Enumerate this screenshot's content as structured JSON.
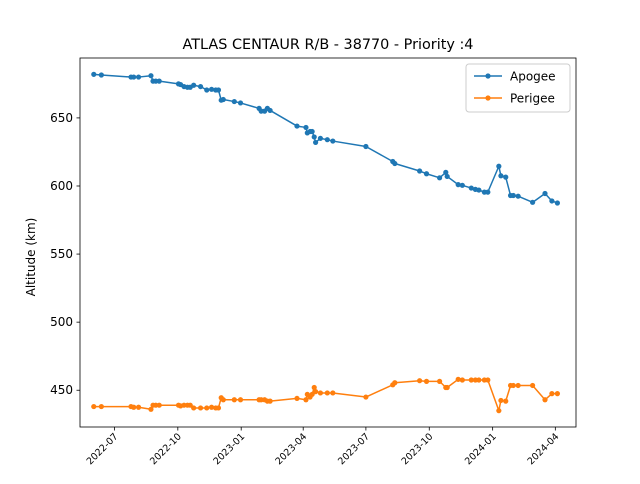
{
  "chart_data": {
    "type": "line",
    "title": "ATLAS CENTAUR R/B - 38770 - Priority :4",
    "xlabel": "",
    "ylabel": "Altitude (km)",
    "xlim": [
      "2022-05-12",
      "2024-05-01"
    ],
    "ylim": [
      423,
      694
    ],
    "xticks": [
      "2022-07",
      "2022-10",
      "2023-01",
      "2023-04",
      "2023-07",
      "2023-10",
      "2024-01",
      "2024-04"
    ],
    "yticks": [
      450,
      500,
      550,
      600,
      650
    ],
    "legend_position": "top-right",
    "grid": false,
    "series": [
      {
        "name": "Apogee",
        "color": "#1f77b4",
        "points": [
          [
            "2022-06-01",
            682
          ],
          [
            "2022-06-12",
            681.5
          ],
          [
            "2022-07-25",
            680
          ],
          [
            "2022-07-29",
            680
          ],
          [
            "2022-08-05",
            680
          ],
          [
            "2022-08-23",
            681
          ],
          [
            "2022-08-26",
            677
          ],
          [
            "2022-08-30",
            677
          ],
          [
            "2022-09-04",
            677
          ],
          [
            "2022-10-02",
            675
          ],
          [
            "2022-10-05",
            674.5
          ],
          [
            "2022-10-10",
            673
          ],
          [
            "2022-10-15",
            672.5
          ],
          [
            "2022-10-19",
            672.5
          ],
          [
            "2022-10-24",
            674
          ],
          [
            "2022-11-03",
            673
          ],
          [
            "2022-11-12",
            670.5
          ],
          [
            "2022-11-19",
            671
          ],
          [
            "2022-11-25",
            670.5
          ],
          [
            "2022-11-29",
            670.5
          ],
          [
            "2022-12-03",
            663
          ],
          [
            "2022-12-06",
            663.5
          ],
          [
            "2022-12-22",
            662
          ],
          [
            "2022-12-31",
            661
          ],
          [
            "2023-01-27",
            657
          ],
          [
            "2023-01-30",
            655
          ],
          [
            "2023-02-04",
            655
          ],
          [
            "2023-02-08",
            657
          ],
          [
            "2023-02-12",
            655.5
          ],
          [
            "2023-03-23",
            644
          ],
          [
            "2023-04-05",
            643
          ],
          [
            "2023-04-07",
            639
          ],
          [
            "2023-04-11",
            640
          ],
          [
            "2023-04-14",
            640
          ],
          [
            "2023-04-17",
            636
          ],
          [
            "2023-04-19",
            632
          ],
          [
            "2023-04-26",
            635
          ],
          [
            "2023-05-06",
            634
          ],
          [
            "2023-05-14",
            633
          ],
          [
            "2023-07-01",
            629
          ],
          [
            "2023-08-09",
            618
          ],
          [
            "2023-08-12",
            616.5
          ],
          [
            "2023-09-17",
            611
          ],
          [
            "2023-09-27",
            609
          ],
          [
            "2023-10-16",
            606
          ],
          [
            "2023-10-25",
            610
          ],
          [
            "2023-10-27",
            607
          ],
          [
            "2023-11-12",
            601
          ],
          [
            "2023-11-18",
            600.5
          ],
          [
            "2023-12-01",
            598.5
          ],
          [
            "2023-12-07",
            597.5
          ],
          [
            "2023-12-12",
            597
          ],
          [
            "2023-12-20",
            595.5
          ],
          [
            "2023-12-25",
            595.5
          ],
          [
            "2024-01-10",
            614.5
          ],
          [
            "2024-01-13",
            607.5
          ],
          [
            "2024-01-20",
            606.5
          ],
          [
            "2024-01-27",
            593
          ],
          [
            "2024-01-31",
            593
          ],
          [
            "2024-02-07",
            592.5
          ],
          [
            "2024-02-28",
            588
          ],
          [
            "2024-03-17",
            594.5
          ],
          [
            "2024-03-27",
            589
          ],
          [
            "2024-04-04",
            587.5
          ]
        ]
      },
      {
        "name": "Perigee",
        "color": "#ff7f0e",
        "points": [
          [
            "2022-06-01",
            438
          ],
          [
            "2022-06-12",
            438
          ],
          [
            "2022-07-25",
            438
          ],
          [
            "2022-07-29",
            437.5
          ],
          [
            "2022-08-05",
            437.5
          ],
          [
            "2022-08-23",
            436
          ],
          [
            "2022-08-26",
            439
          ],
          [
            "2022-08-30",
            439
          ],
          [
            "2022-09-04",
            439
          ],
          [
            "2022-10-02",
            439
          ],
          [
            "2022-10-05",
            438.5
          ],
          [
            "2022-10-10",
            439
          ],
          [
            "2022-10-15",
            439
          ],
          [
            "2022-10-19",
            439
          ],
          [
            "2022-10-24",
            437
          ],
          [
            "2022-11-03",
            437
          ],
          [
            "2022-11-12",
            437
          ],
          [
            "2022-11-19",
            437.5
          ],
          [
            "2022-11-25",
            437
          ],
          [
            "2022-11-29",
            437
          ],
          [
            "2022-12-03",
            444.5
          ],
          [
            "2022-12-06",
            443
          ],
          [
            "2022-12-22",
            443
          ],
          [
            "2022-12-31",
            443
          ],
          [
            "2023-01-27",
            443
          ],
          [
            "2023-01-30",
            443
          ],
          [
            "2023-02-04",
            443
          ],
          [
            "2023-02-08",
            442
          ],
          [
            "2023-02-12",
            442
          ],
          [
            "2023-03-23",
            444
          ],
          [
            "2023-04-05",
            443
          ],
          [
            "2023-04-07",
            447
          ],
          [
            "2023-04-11",
            445
          ],
          [
            "2023-04-14",
            447
          ],
          [
            "2023-04-17",
            452
          ],
          [
            "2023-04-19",
            449
          ],
          [
            "2023-04-26",
            448
          ],
          [
            "2023-05-06",
            448
          ],
          [
            "2023-05-14",
            448
          ],
          [
            "2023-07-01",
            445
          ],
          [
            "2023-08-09",
            454
          ],
          [
            "2023-08-12",
            455.5
          ],
          [
            "2023-09-17",
            457
          ],
          [
            "2023-09-27",
            456.5
          ],
          [
            "2023-10-16",
            456.5
          ],
          [
            "2023-10-25",
            452
          ],
          [
            "2023-10-27",
            452
          ],
          [
            "2023-11-12",
            458
          ],
          [
            "2023-11-18",
            457.5
          ],
          [
            "2023-12-01",
            457.5
          ],
          [
            "2023-12-07",
            457.5
          ],
          [
            "2023-12-12",
            457.5
          ],
          [
            "2023-12-20",
            457.5
          ],
          [
            "2023-12-25",
            457.5
          ],
          [
            "2024-01-10",
            435
          ],
          [
            "2024-01-13",
            442.5
          ],
          [
            "2024-01-20",
            442
          ],
          [
            "2024-01-27",
            453.5
          ],
          [
            "2024-01-31",
            453.5
          ],
          [
            "2024-02-07",
            453.5
          ],
          [
            "2024-02-28",
            453.5
          ],
          [
            "2024-03-17",
            443
          ],
          [
            "2024-03-27",
            447.5
          ],
          [
            "2024-04-04",
            447.5
          ]
        ]
      }
    ]
  }
}
